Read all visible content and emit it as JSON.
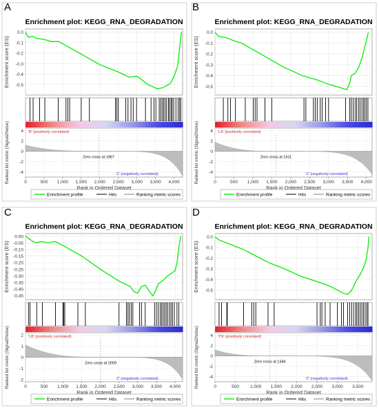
{
  "colors": {
    "es_line": "#00ee00",
    "hits": "#000000",
    "metric_fill": "#bdbdbd",
    "metric_stroke": "#999999",
    "frame": "#999999",
    "pos_label": "#d42a2a",
    "neg_label": "#3232d2",
    "zero_line": "#aaaaaa",
    "heat_stops": [
      "#e8222a",
      "#f08a8a",
      "#f6c7e3",
      "#d7d7f5",
      "#9a9ae8",
      "#4c4ce0",
      "#2a2ad2"
    ]
  },
  "legend": {
    "es": "Enrichment profile",
    "hits": "Hits",
    "metric": "Ranking metric scores"
  },
  "panels": [
    {
      "letter": "A",
      "title": "Enrichment plot: KEGG_RNA_DEGRADATION",
      "pos_label": "'B' (positively correlated)",
      "neg_label": "'Z' (negatively correlated)",
      "zero_cross": "Zero cross at 1967"
    },
    {
      "letter": "B",
      "title": "Enrichment plot: KEGG_RNA_DEGRADATION",
      "pos_label": "'LA' (positively correlated)",
      "neg_label": "'Z' (negatively correlated)",
      "zero_cross": "Zero cross at 1611"
    },
    {
      "letter": "C",
      "title": "Enrichment plot: KEGG_RNA_DEGRADATION",
      "pos_label": "'LB' (positively correlated)",
      "neg_label": "'Z' (negatively correlated)",
      "zero_cross": "Zero cross at 2009"
    },
    {
      "letter": "D",
      "title": "Enrichment plot: KEGG_RNA_DEGRADATION",
      "pos_label": "'TN' (positively correlated)",
      "neg_label": "'Z' (negatively correlated)",
      "zero_cross": "Zero cross at 1346"
    }
  ],
  "chart_data": [
    {
      "type": "line",
      "title": "Enrichment plot: KEGG_RNA_DEGRADATION",
      "ylabel": "Enrichment score (ES)",
      "ylabel2": "Ranked list metric (Signal2Noise)",
      "xlabel": "Rank in Ordered Dataset",
      "xlim": [
        0,
        4230
      ],
      "xticks": [
        0,
        500,
        1000,
        1500,
        2000,
        2500,
        3000,
        3500,
        4000
      ],
      "xticklabels": [
        "0",
        "500",
        "1,000",
        "1,500",
        "2,000",
        "2,500",
        "3,000",
        "3,500",
        "4,000"
      ],
      "es_ylim": [
        -0.6,
        0.03
      ],
      "es_yticks": [
        0.0,
        -0.1,
        -0.2,
        -0.3,
        -0.4,
        -0.5
      ],
      "es_yticklabels": [
        "0.0",
        "-0.1",
        "-0.2",
        "-0.3",
        "-0.4",
        "-0.5"
      ],
      "metric_ylim": [
        -5,
        4.5
      ],
      "metric_yticks": [
        4,
        2,
        0,
        -2,
        -4
      ],
      "metric_yticklabels": [
        "4",
        "2",
        "0",
        "-2",
        "-4"
      ],
      "zero_cross": 1967,
      "metric": {
        "left": 1.2,
        "right": -4.8,
        "shape": 1.0
      },
      "es_points": [
        [
          0,
          0.0
        ],
        [
          80,
          -0.05
        ],
        [
          200,
          -0.04
        ],
        [
          300,
          -0.06
        ],
        [
          500,
          -0.07
        ],
        [
          700,
          -0.09
        ],
        [
          900,
          -0.09
        ],
        [
          1100,
          -0.13
        ],
        [
          1500,
          -0.21
        ],
        [
          2000,
          -0.31
        ],
        [
          2500,
          -0.38
        ],
        [
          2800,
          -0.43
        ],
        [
          3000,
          -0.42
        ],
        [
          3300,
          -0.5
        ],
        [
          3550,
          -0.54
        ],
        [
          3700,
          -0.53
        ],
        [
          3800,
          -0.51
        ],
        [
          3900,
          -0.49
        ],
        [
          4000,
          -0.42
        ],
        [
          4100,
          -0.32
        ],
        [
          4150,
          -0.15
        ],
        [
          4180,
          -0.05
        ],
        [
          4200,
          0.0
        ]
      ],
      "hits": [
        120,
        205,
        380,
        520,
        880,
        1090,
        1140,
        1190,
        1500,
        1720,
        2420,
        2460,
        2500,
        2700,
        2760,
        2840,
        2900,
        2990,
        3230,
        3380,
        3460,
        3510,
        3600,
        3640,
        3680,
        3720,
        3760,
        3800,
        3850,
        3880,
        3920,
        3950,
        3990,
        4050,
        4110,
        4150,
        4180
      ]
    },
    {
      "type": "line",
      "title": "Enrichment plot: KEGG_RNA_DEGRADATION",
      "ylabel": "Enrichment score (ES)",
      "ylabel2": "Ranked list metric (Signal2Noise)",
      "xlabel": "Rank in Ordered Dataset",
      "xlim": [
        0,
        4150
      ],
      "xticks": [
        0,
        500,
        1000,
        1500,
        2000,
        2500,
        3000,
        3500,
        4000
      ],
      "xticklabels": [
        "0",
        "500",
        "1,000",
        "1,500",
        "2,000",
        "2,500",
        "3,000",
        "3,500",
        "4,000"
      ],
      "es_ylim": [
        -0.58,
        0.03
      ],
      "es_yticks": [
        0.0,
        -0.1,
        -0.2,
        -0.3,
        -0.4,
        -0.5
      ],
      "es_yticklabels": [
        "0.0",
        "-0.1",
        "-0.2",
        "-0.3",
        "-0.4",
        "-0.5"
      ],
      "metric_ylim": [
        -5,
        4.5
      ],
      "metric_yticks": [
        4,
        2,
        0,
        -2,
        -4
      ],
      "metric_yticklabels": [
        "4",
        "2",
        "0",
        "-2",
        "-4"
      ],
      "zero_cross": 1611,
      "metric": {
        "left": 1.8,
        "right": -4.5,
        "shape": 1.0
      },
      "es_points": [
        [
          0,
          0.0
        ],
        [
          100,
          -0.04
        ],
        [
          300,
          -0.05
        ],
        [
          500,
          -0.08
        ],
        [
          700,
          -0.1
        ],
        [
          900,
          -0.14
        ],
        [
          1300,
          -0.22
        ],
        [
          1800,
          -0.32
        ],
        [
          2300,
          -0.4
        ],
        [
          2700,
          -0.44
        ],
        [
          3000,
          -0.48
        ],
        [
          3300,
          -0.51
        ],
        [
          3480,
          -0.53
        ],
        [
          3560,
          -0.47
        ],
        [
          3600,
          -0.4
        ],
        [
          3700,
          -0.38
        ],
        [
          3800,
          -0.32
        ],
        [
          3900,
          -0.22
        ],
        [
          3950,
          -0.14
        ],
        [
          4000,
          -0.08
        ],
        [
          4050,
          0.0
        ]
      ],
      "hits": [
        220,
        340,
        410,
        540,
        800,
        1010,
        1060,
        1110,
        1320,
        1500,
        2350,
        2400,
        2600,
        2650,
        2700,
        2780,
        2830,
        2920,
        3000,
        3450,
        3560,
        3600,
        3650,
        3700,
        3740,
        3790,
        3830,
        3880,
        3920,
        3960,
        4000,
        4040
      ]
    },
    {
      "type": "line",
      "title": "Enrichment plot: KEGG_RNA_DEGRADATION",
      "ylabel": "Enrichment score (ES)",
      "ylabel2": "Ranked list metric (Signal2Noise)",
      "xlabel": "Rank in Ordered Dataset",
      "xlim": [
        0,
        4200
      ],
      "xticks": [
        0,
        500,
        1000,
        1500,
        2000,
        2500,
        3000,
        3500,
        4000
      ],
      "xticklabels": [
        "0",
        "500",
        "1,000",
        "1,500",
        "2,000",
        "2,500",
        "3,000",
        "3,500",
        "4,000"
      ],
      "es_ylim": [
        -0.48,
        0.02
      ],
      "es_yticks": [
        0.0,
        -0.05,
        -0.1,
        -0.15,
        -0.2,
        -0.25,
        -0.3,
        -0.35,
        -0.4,
        -0.45
      ],
      "es_yticklabels": [
        "0.00",
        "-0.05",
        "-0.10",
        "-0.15",
        "-0.20",
        "-0.25",
        "-0.30",
        "-0.35",
        "-0.40",
        "-0.45"
      ],
      "metric_ylim": [
        -2.2,
        2.2
      ],
      "metric_yticks": [
        2,
        1,
        0,
        -1,
        -2
      ],
      "metric_yticklabels": [
        "2",
        "1",
        "0",
        "-1",
        "-2"
      ],
      "zero_cross": 2009,
      "metric": {
        "left": 1.1,
        "right": -2.0,
        "shape": 1.0
      },
      "es_points": [
        [
          0,
          0.0
        ],
        [
          100,
          -0.02
        ],
        [
          200,
          -0.04
        ],
        [
          300,
          -0.05
        ],
        [
          400,
          -0.04
        ],
        [
          600,
          -0.05
        ],
        [
          800,
          -0.04
        ],
        [
          1000,
          -0.07
        ],
        [
          1500,
          -0.15
        ],
        [
          2000,
          -0.25
        ],
        [
          2500,
          -0.34
        ],
        [
          2800,
          -0.38
        ],
        [
          2900,
          -0.42
        ],
        [
          3000,
          -0.43
        ],
        [
          3100,
          -0.38
        ],
        [
          3200,
          -0.37
        ],
        [
          3300,
          -0.41
        ],
        [
          3400,
          -0.45
        ],
        [
          3450,
          -0.43
        ],
        [
          3550,
          -0.36
        ],
        [
          3650,
          -0.34
        ],
        [
          3800,
          -0.3
        ],
        [
          3900,
          -0.28
        ],
        [
          4000,
          -0.26
        ],
        [
          4050,
          -0.2
        ],
        [
          4100,
          -0.08
        ],
        [
          4150,
          0.0
        ]
      ],
      "hits": [
        80,
        120,
        300,
        450,
        800,
        1000,
        1020,
        1050,
        1400,
        1600,
        2500,
        2700,
        2740,
        2780,
        2830,
        2870,
        3050,
        3100,
        3200,
        3450,
        3500,
        3550,
        3600,
        3640,
        3680,
        3720,
        3760,
        3800,
        3850,
        3890,
        3930,
        3980,
        4050,
        4100
      ]
    },
    {
      "type": "line",
      "title": "Enrichment plot: KEGG_RNA_DEGRADATION",
      "ylabel": "Enrichment score (ES)",
      "ylabel2": "Ranked list metric (Signal2Noise)",
      "xlabel": "Rank in Ordered Dataset",
      "xlim": [
        0,
        3850
      ],
      "xticks": [
        0,
        500,
        1000,
        1500,
        2000,
        2500,
        3000,
        3500
      ],
      "xticklabels": [
        "0",
        "500",
        "1,000",
        "1,500",
        "2,000",
        "2,500",
        "3,000",
        "3,500"
      ],
      "es_ylim": [
        -0.59,
        0.03
      ],
      "es_yticks": [
        0.0,
        -0.1,
        -0.2,
        -0.3,
        -0.4,
        -0.5
      ],
      "es_yticklabels": [
        "0.0",
        "-0.1",
        "-0.2",
        "-0.3",
        "-0.4",
        "-0.5"
      ],
      "metric_ylim": [
        -5,
        4.5
      ],
      "metric_yticks": [
        4,
        2,
        0,
        -2,
        -4
      ],
      "metric_yticklabels": [
        "4",
        "2",
        "0",
        "-2",
        "-4"
      ],
      "zero_cross": 1346,
      "metric": {
        "left": 1.2,
        "right": -4.8,
        "shape": 1.0
      },
      "es_points": [
        [
          0,
          0.0
        ],
        [
          100,
          -0.03
        ],
        [
          300,
          -0.06
        ],
        [
          500,
          -0.09
        ],
        [
          700,
          -0.12
        ],
        [
          1000,
          -0.18
        ],
        [
          1300,
          -0.24
        ],
        [
          1700,
          -0.3
        ],
        [
          2100,
          -0.37
        ],
        [
          2500,
          -0.42
        ],
        [
          2800,
          -0.46
        ],
        [
          3000,
          -0.5
        ],
        [
          3150,
          -0.53
        ],
        [
          3250,
          -0.54
        ],
        [
          3350,
          -0.5
        ],
        [
          3450,
          -0.42
        ],
        [
          3550,
          -0.36
        ],
        [
          3650,
          -0.28
        ],
        [
          3700,
          -0.22
        ],
        [
          3750,
          -0.1
        ],
        [
          3770,
          0.0
        ]
      ],
      "hits": [
        100,
        160,
        290,
        300,
        700,
        900,
        950,
        1000,
        1300,
        1450,
        2500,
        2580,
        2620,
        2700,
        2820,
        3000,
        3100,
        3150,
        3250,
        3300,
        3350,
        3400,
        3450,
        3480,
        3520,
        3560,
        3600,
        3640,
        3680,
        3720,
        3750
      ]
    }
  ]
}
